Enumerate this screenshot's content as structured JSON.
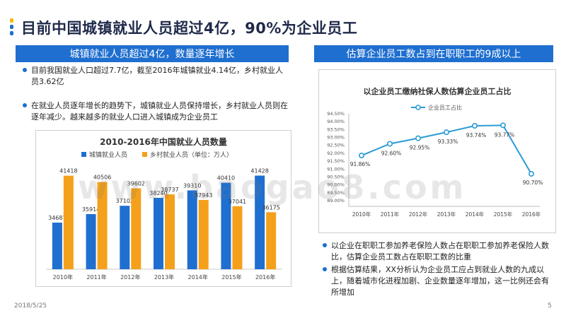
{
  "page": {
    "title": "目前中国城镇就业人员超过4亿，90%为企业员工",
    "date": "2018/5/25",
    "page_number": "5",
    "watermark": "www.baogao8.com"
  },
  "left": {
    "header": "城镇就业人员超过4亿，数量逐年增长",
    "bullets": [
      "目前我国就业人口超过7.7亿，截至2016年城镇就业4.14亿，乡村就业人员3.62亿",
      "在就业人员逐年增长的趋势下，城镇就业人员保持增长，乡村就业人员则在逐年减少。越来越多的就业人口进入城镇成为企业员工"
    ]
  },
  "right": {
    "header": "估算企业员工数占到在职职工的9成以上",
    "bullets": [
      "以企业在职职工参加养老保险人数占在职职工参加养老保险人数比，估算企业员工数占在职职工数的比重",
      "根据估算结果，XX分析认为企业员工应占到就业人数的九成以上，随着城市化进程加剧、企业数量逐年增加，这一比例还会有所增加"
    ]
  },
  "chart_data": [
    {
      "type": "bar",
      "title": "2010-2016年中国就业人员数量",
      "categories": [
        "2010年",
        "2011年",
        "2012年",
        "2013年",
        "2014年",
        "2015年",
        "2016年"
      ],
      "series": [
        {
          "name": "城镇就业人员",
          "color": "#1f6fd0",
          "values": [
            34687,
            35914,
            37102,
            38240,
            39310,
            40410,
            41428
          ]
        },
        {
          "name": "乡村就业人员（单位：万人）",
          "color": "#f5a01a",
          "values": [
            41418,
            40506,
            39602,
            38737,
            37943,
            37041,
            36175
          ]
        }
      ],
      "ylim": [
        28000,
        43000
      ],
      "legend": "top",
      "grid": false
    },
    {
      "type": "line",
      "title": "以企业员工缴纳社保人数估算企业员工占比",
      "categories": [
        "2010年",
        "2011年",
        "2012年",
        "2013年",
        "2014年",
        "2015年",
        "2016年"
      ],
      "series": [
        {
          "name": "企业员工占比",
          "color": "#2a9bd6",
          "values": [
            91.86,
            92.6,
            92.95,
            93.33,
            93.74,
            93.77,
            90.7
          ],
          "labels": [
            "91.86%",
            "92.60%",
            "92.95%",
            "93.33%",
            "93.74%",
            "93.77%",
            "90.70%"
          ]
        }
      ],
      "yticks": [
        "94.50%",
        "94.00%",
        "93.50%",
        "93.00%",
        "92.50%",
        "92.00%",
        "91.50%",
        "91.00%",
        "90.50%",
        "90.00%",
        "89.50%",
        "89.00%"
      ],
      "ylim": [
        89.0,
        94.5
      ],
      "legend": "top",
      "grid": false
    }
  ],
  "colors": {
    "accent": "#1f6fd0",
    "orange": "#f5a01a",
    "line": "#2a9bd6",
    "dot_yellow": "#f5b800",
    "dot_blue": "#1f6fd0"
  }
}
